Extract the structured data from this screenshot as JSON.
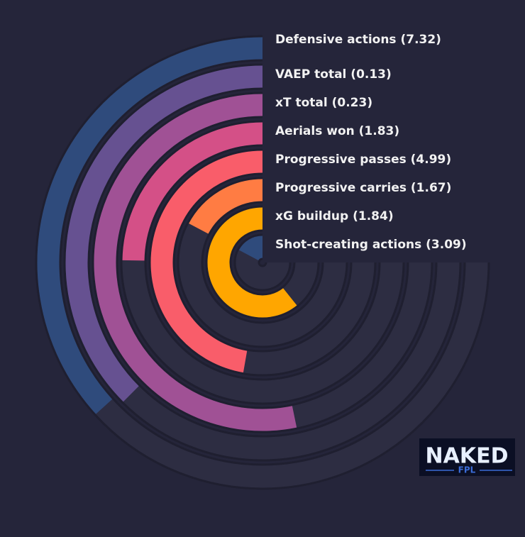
{
  "chart_data": {
    "type": "radial-bar",
    "categories": [
      "Defensive actions (7.32)",
      "VAEP total (0.13)",
      "xT total (0.23)",
      "Aerials won (1.83)",
      "Progressive passes (4.99)",
      "Progressive carries (1.67)",
      "xG buildup (1.84)",
      "Shot-creating actions (3.09)"
    ],
    "values": [
      49,
      50,
      71,
      33,
      63,
      23,
      81,
      23
    ],
    "colors": [
      "#2f4b7c",
      "#665191",
      "#a05195",
      "#d45087",
      "#f95d6a",
      "#ff7c43",
      "#ffa600",
      "#2f4b7c"
    ],
    "ylim": [
      0,
      100
    ]
  },
  "logo": {
    "line1": "NAKED",
    "line2": "FPL"
  }
}
